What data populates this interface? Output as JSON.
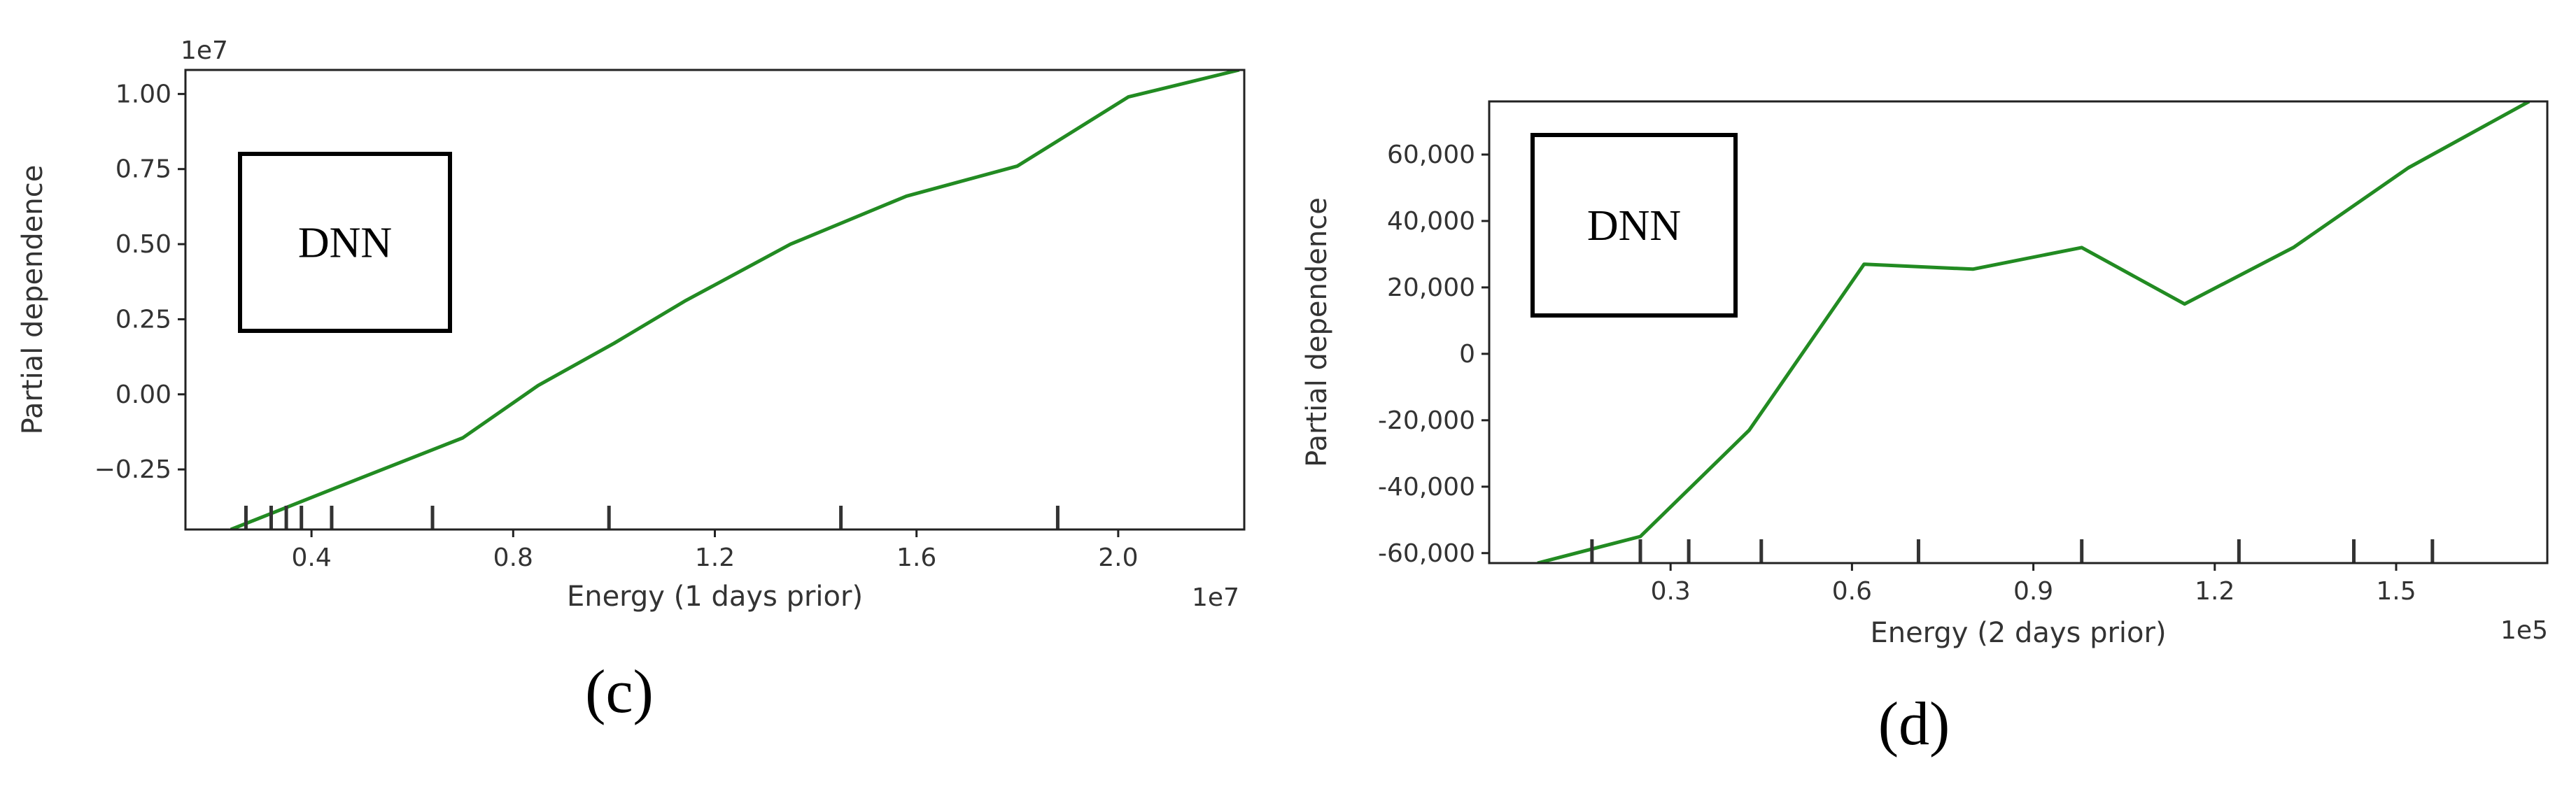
{
  "chart_data": [
    {
      "type": "line",
      "panel_caption": "(c)",
      "annotation": "DNN",
      "xlabel": "Energy (1 days prior)",
      "ylabel": "Partial dependence",
      "x_multiplier": "1e7",
      "y_multiplier": "1e7",
      "xlim": [
        0.15,
        2.25
      ],
      "ylim": [
        -0.45,
        1.08
      ],
      "x_ticks": [
        0.4,
        0.8,
        1.2,
        1.6,
        2.0
      ],
      "x_tick_labels": [
        "0.4",
        "0.8",
        "1.2",
        "1.6",
        "2.0"
      ],
      "y_ticks": [
        -0.25,
        0.0,
        0.25,
        0.5,
        0.75,
        1.0
      ],
      "y_tick_labels": [
        "−0.25",
        "0.00",
        "0.25",
        "0.50",
        "0.75",
        "1.00"
      ],
      "rug_x": [
        0.27,
        0.32,
        0.35,
        0.38,
        0.44,
        0.64,
        0.99,
        1.45,
        1.88
      ],
      "grid": false,
      "legend": "none",
      "line_color": "#228B22",
      "series": [
        {
          "x": [
            0.24,
            0.45,
            0.7,
            0.85,
            1.0,
            1.14,
            1.35,
            1.58,
            1.8,
            2.02,
            2.24
          ],
          "y": [
            -0.45,
            -0.31,
            -0.145,
            0.03,
            0.17,
            0.31,
            0.5,
            0.66,
            0.76,
            0.99,
            1.08
          ]
        }
      ]
    },
    {
      "type": "line",
      "panel_caption": "(d)",
      "annotation": "DNN",
      "xlabel": "Energy (2 days prior)",
      "ylabel": "Partial dependence",
      "x_multiplier": "1e5",
      "xlim": [
        0.0,
        1.75
      ],
      "ylim": [
        -63000,
        76000
      ],
      "x_ticks": [
        0.3,
        0.6,
        0.9,
        1.2,
        1.5
      ],
      "x_tick_labels": [
        "0.3",
        "0.6",
        "0.9",
        "1.2",
        "1.5"
      ],
      "y_ticks": [
        -60000,
        -40000,
        -20000,
        0,
        20000,
        40000,
        60000
      ],
      "y_tick_labels": [
        "-60,000",
        "-40,000",
        "-20,000",
        "0",
        "20,000",
        "40,000",
        "60,000"
      ],
      "rug_x": [
        0.17,
        0.25,
        0.33,
        0.45,
        0.71,
        0.98,
        1.24,
        1.43,
        1.56
      ],
      "grid": false,
      "legend": "none",
      "line_color": "#228B22",
      "series": [
        {
          "x": [
            0.08,
            0.25,
            0.43,
            0.62,
            0.8,
            0.98,
            1.15,
            1.33,
            1.52,
            1.72
          ],
          "y": [
            -63000,
            -55000,
            -23000,
            27000,
            25500,
            32000,
            15000,
            32000,
            56000,
            76000
          ]
        }
      ]
    }
  ]
}
